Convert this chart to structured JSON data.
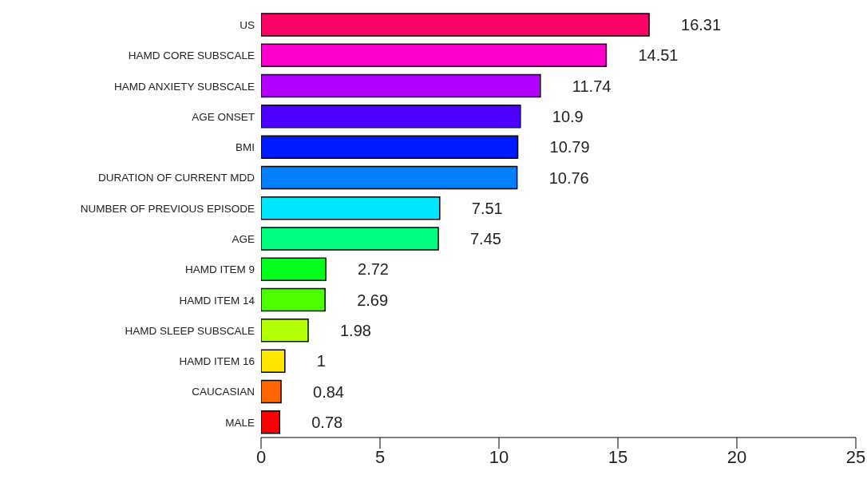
{
  "chart_data": {
    "type": "bar",
    "orientation": "horizontal",
    "categories": [
      "US",
      "HAMD CORE SUBSCALE",
      "HAMD ANXIETY SUBSCALE",
      "AGE ONSET",
      "BMI",
      "DURATION OF CURRENT MDD",
      "NUMBER OF PREVIOUS EPISODE",
      "AGE",
      "HAMD ITEM 9",
      "HAMD ITEM 14",
      "HAMD SLEEP SUBSCALE",
      "HAMD ITEM 16",
      "CAUCASIAN",
      "MALE"
    ],
    "values": [
      16.31,
      14.51,
      11.74,
      10.9,
      10.79,
      10.76,
      7.51,
      7.45,
      2.72,
      2.69,
      1.98,
      1,
      0.84,
      0.78
    ],
    "colors": [
      "#ff0066",
      "#ff00cc",
      "#b300ff",
      "#4d00ff",
      "#001aff",
      "#0080ff",
      "#00e5ff",
      "#00ff80",
      "#00ff1a",
      "#4dff00",
      "#b3ff00",
      "#ffe600",
      "#ff6600",
      "#ff0000"
    ],
    "xlim": [
      0,
      25
    ],
    "xticks": [
      0,
      5,
      10,
      15,
      20,
      25
    ],
    "data_labels": true
  }
}
